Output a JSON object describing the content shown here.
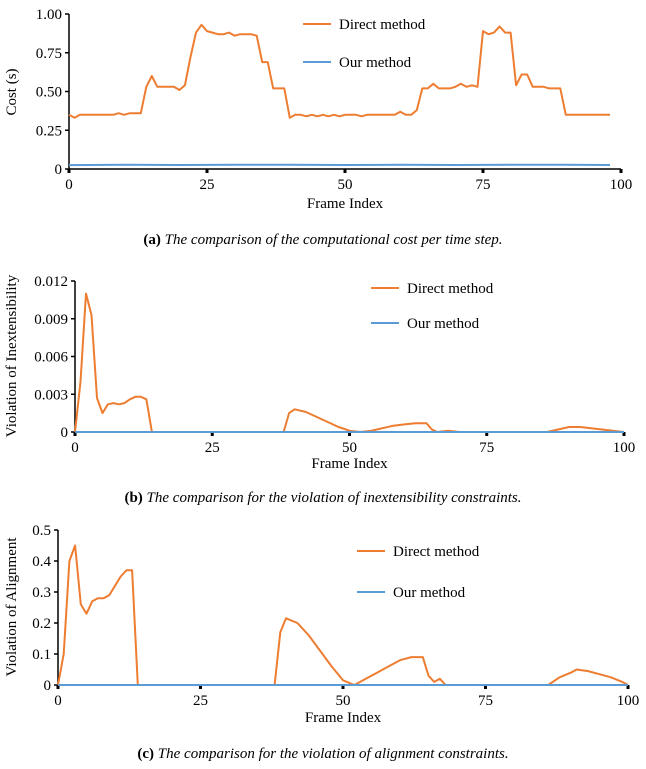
{
  "colors": {
    "direct": "#ED7D31",
    "ours": "#5B9BD5",
    "axis": "#000000"
  },
  "chart_data": [
    {
      "type": "line",
      "xlabel": "Frame Index",
      "ylabel": "Cost (s)",
      "xlim": [
        0,
        100
      ],
      "ylim": [
        0,
        1.0
      ],
      "xticks": [
        "0",
        "25",
        "50",
        "75",
        "100"
      ],
      "yticks": [
        "0",
        "0.25",
        "0.50",
        "0.75",
        "1.00"
      ],
      "legend": {
        "position": "top-right",
        "entries": [
          "Direct method",
          "Our method"
        ]
      },
      "caption_tag": "(a)",
      "caption_text": "The comparison of the computational cost per time step.",
      "series": [
        {
          "name": "Direct method",
          "x": [
            0,
            1,
            2,
            3,
            4,
            5,
            6,
            7,
            8,
            9,
            10,
            11,
            12,
            13,
            14,
            15,
            16,
            17,
            18,
            19,
            20,
            21,
            22,
            23,
            24,
            25,
            26,
            27,
            28,
            29,
            30,
            31,
            32,
            33,
            34,
            35,
            36,
            37,
            38,
            39,
            40,
            41,
            42,
            43,
            44,
            45,
            46,
            47,
            48,
            49,
            50,
            51,
            52,
            53,
            54,
            55,
            56,
            57,
            58,
            59,
            60,
            61,
            62,
            63,
            64,
            65,
            66,
            67,
            68,
            69,
            70,
            71,
            72,
            73,
            74,
            75,
            76,
            77,
            78,
            79,
            80,
            81,
            82,
            83,
            84,
            85,
            86,
            87,
            88,
            89,
            90,
            91,
            92,
            93,
            94,
            95,
            96,
            97,
            98
          ],
          "values": [
            0.35,
            0.33,
            0.35,
            0.35,
            0.35,
            0.35,
            0.35,
            0.35,
            0.35,
            0.36,
            0.35,
            0.36,
            0.36,
            0.36,
            0.53,
            0.6,
            0.53,
            0.53,
            0.53,
            0.53,
            0.51,
            0.54,
            0.72,
            0.88,
            0.93,
            0.89,
            0.88,
            0.87,
            0.87,
            0.88,
            0.86,
            0.87,
            0.87,
            0.87,
            0.86,
            0.69,
            0.69,
            0.52,
            0.52,
            0.52,
            0.33,
            0.35,
            0.35,
            0.34,
            0.35,
            0.34,
            0.35,
            0.34,
            0.35,
            0.34,
            0.35,
            0.35,
            0.35,
            0.34,
            0.35,
            0.35,
            0.35,
            0.35,
            0.35,
            0.35,
            0.37,
            0.35,
            0.35,
            0.38,
            0.52,
            0.52,
            0.55,
            0.52,
            0.52,
            0.52,
            0.53,
            0.55,
            0.53,
            0.54,
            0.53,
            0.89,
            0.87,
            0.88,
            0.92,
            0.88,
            0.88,
            0.54,
            0.61,
            0.61,
            0.53,
            0.53,
            0.53,
            0.52,
            0.52,
            0.52,
            0.35,
            0.35,
            0.35,
            0.35,
            0.35,
            0.35,
            0.35,
            0.35,
            0.35
          ]
        },
        {
          "name": "Our method",
          "x": [
            0,
            10,
            20,
            30,
            40,
            50,
            60,
            70,
            80,
            90,
            98
          ],
          "values": [
            0.025,
            0.027,
            0.026,
            0.028,
            0.027,
            0.026,
            0.027,
            0.026,
            0.027,
            0.027,
            0.026
          ]
        }
      ]
    },
    {
      "type": "line",
      "xlabel": "Frame Index",
      "ylabel": "Violation of Inextensibility",
      "xlim": [
        0,
        100
      ],
      "ylim": [
        0,
        0.012
      ],
      "xticks": [
        "0",
        "25",
        "50",
        "75",
        "100"
      ],
      "yticks": [
        "0",
        "0.003",
        "0.006",
        "0.009",
        "0.012"
      ],
      "legend": {
        "position": "top-right",
        "entries": [
          "Direct method",
          "Our method"
        ]
      },
      "caption_tag": "(b)",
      "caption_text": "The comparison for the violation of inextensibility constraints.",
      "series": [
        {
          "name": "Direct method",
          "x": [
            0,
            1,
            2,
            3,
            4,
            5,
            6,
            7,
            8,
            9,
            10,
            11,
            12,
            13,
            14,
            20,
            30,
            38,
            39,
            40,
            42,
            44,
            46,
            48,
            50,
            52,
            54,
            56,
            58,
            60,
            62,
            64,
            65,
            66,
            68,
            70,
            75,
            80,
            86,
            88,
            90,
            92,
            94,
            96,
            98,
            100
          ],
          "values": [
            0.0,
            0.004,
            0.011,
            0.0093,
            0.0027,
            0.0015,
            0.0022,
            0.0023,
            0.0022,
            0.0023,
            0.0026,
            0.0028,
            0.0028,
            0.0026,
            0.0,
            0.0,
            0.0,
            0.0,
            0.0015,
            0.0018,
            0.0016,
            0.0012,
            0.0008,
            0.0004,
            0.0001,
            0.0,
            0.0001,
            0.0003,
            0.0005,
            0.0006,
            0.0007,
            0.0007,
            0.0002,
            0.0,
            0.0001,
            0.0,
            0.0,
            0.0,
            0.0,
            0.0002,
            0.0004,
            0.0004,
            0.0003,
            0.0002,
            0.0001,
            0.0
          ]
        },
        {
          "name": "Our method",
          "x": [
            0,
            100
          ],
          "values": [
            0.0,
            0.0
          ]
        }
      ]
    },
    {
      "type": "line",
      "xlabel": "Frame Index",
      "ylabel": "Violation of Alignment",
      "xlim": [
        0,
        100
      ],
      "ylim": [
        0,
        0.5
      ],
      "xticks": [
        "0",
        "25",
        "50",
        "75",
        "100"
      ],
      "yticks": [
        "0",
        "0.1",
        "0.2",
        "0.3",
        "0.4",
        "0.5"
      ],
      "legend": {
        "position": "top-right",
        "entries": [
          "Direct method",
          "Our method"
        ]
      },
      "caption_tag": "(c)",
      "caption_text": "The comparison for the violation of alignment constraints.",
      "series": [
        {
          "name": "Direct method",
          "x": [
            0,
            1,
            2,
            3,
            4,
            5,
            6,
            7,
            8,
            9,
            10,
            11,
            12,
            13,
            14,
            20,
            30,
            38,
            39,
            40,
            42,
            44,
            46,
            48,
            50,
            52,
            54,
            56,
            58,
            60,
            62,
            64,
            65,
            66,
            67,
            68,
            70,
            75,
            80,
            86,
            88,
            90,
            91,
            93,
            95,
            97,
            99,
            100
          ],
          "values": [
            0.0,
            0.1,
            0.4,
            0.45,
            0.26,
            0.23,
            0.27,
            0.28,
            0.28,
            0.29,
            0.32,
            0.35,
            0.37,
            0.37,
            0.0,
            0.0,
            0.0,
            0.0,
            0.17,
            0.215,
            0.2,
            0.16,
            0.11,
            0.06,
            0.015,
            0.0,
            0.02,
            0.04,
            0.06,
            0.08,
            0.09,
            0.09,
            0.03,
            0.01,
            0.02,
            0.0,
            0.0,
            0.0,
            0.0,
            0.0,
            0.025,
            0.04,
            0.05,
            0.045,
            0.035,
            0.025,
            0.01,
            0.0
          ]
        },
        {
          "name": "Our method",
          "x": [
            0,
            100
          ],
          "values": [
            0.0,
            0.0
          ]
        }
      ]
    }
  ]
}
